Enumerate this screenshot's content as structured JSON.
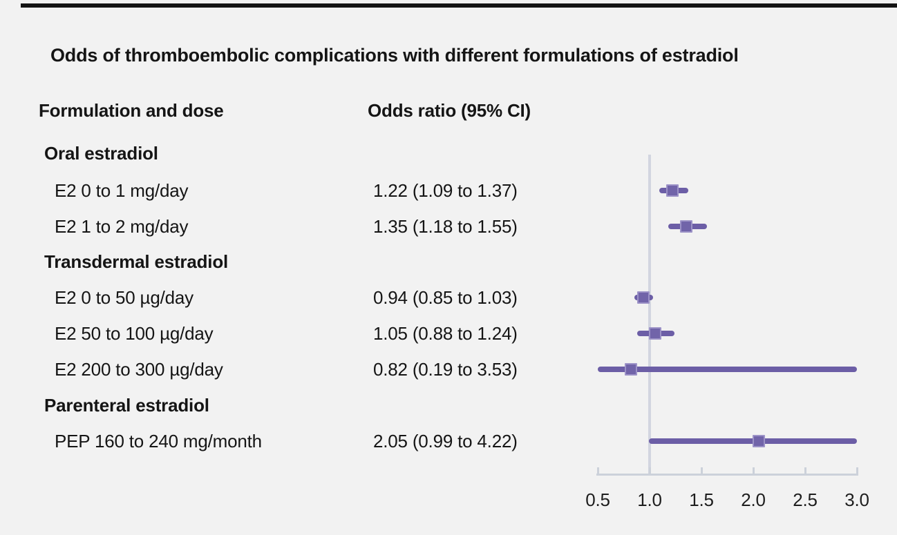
{
  "figure": {
    "column_headers": {
      "left": "Formulation and dose",
      "right": "Odds ratio (95% CI)"
    }
  },
  "chart_data": {
    "type": "forest",
    "title": "Odds of thromboembolic complications with different formulations of estradiol",
    "xlabel": "Odds ratio",
    "axis": {
      "min": 0.5,
      "max": 3.0,
      "reference_line": 1.0,
      "ticks": [
        0.5,
        1.0,
        1.5,
        2.0,
        2.5,
        3.0
      ],
      "tick_labels": [
        "0.5",
        "1.0",
        "1.5",
        "2.0",
        "2.5",
        "3.0"
      ],
      "grid": false
    },
    "groups": [
      {
        "label": "Oral estradiol",
        "rows": [
          {
            "label": "E2 0 to 1 mg/day",
            "or_text": "1.22 (1.09 to 1.37)",
            "estimate": 1.22,
            "ci_low": 1.09,
            "ci_high": 1.37
          },
          {
            "label": "E2 1 to 2 mg/day",
            "or_text": "1.35 (1.18 to 1.55)",
            "estimate": 1.35,
            "ci_low": 1.18,
            "ci_high": 1.55
          }
        ]
      },
      {
        "label": "Transdermal estradiol",
        "rows": [
          {
            "label": "E2 0 to 50 µg/day",
            "or_text": "0.94 (0.85 to 1.03)",
            "estimate": 0.94,
            "ci_low": 0.85,
            "ci_high": 1.03
          },
          {
            "label": "E2 50 to 100 µg/day",
            "or_text": "1.05 (0.88 to 1.24)",
            "estimate": 1.05,
            "ci_low": 0.88,
            "ci_high": 1.24
          },
          {
            "label": "E2 200 to 300 µg/day",
            "or_text": "0.82 (0.19 to 3.53)",
            "estimate": 0.82,
            "ci_low": 0.19,
            "ci_high": 3.53
          }
        ]
      },
      {
        "label": "Parenteral estradiol",
        "rows": [
          {
            "label": "PEP 160 to 240 mg/month",
            "or_text": "2.05 (0.99 to 4.22)",
            "estimate": 2.05,
            "ci_low": 0.99,
            "ci_high": 4.22
          }
        ]
      }
    ],
    "colors": {
      "marker_line": "#6c5ea6",
      "marker_fill": "#7164a9",
      "marker_edge": "#9c92c7",
      "reference_line": "#d2d5e0",
      "axis_line": "#ccd1da",
      "background": "#f2f2f2",
      "text": "#151515",
      "top_rule": "#141414"
    }
  }
}
